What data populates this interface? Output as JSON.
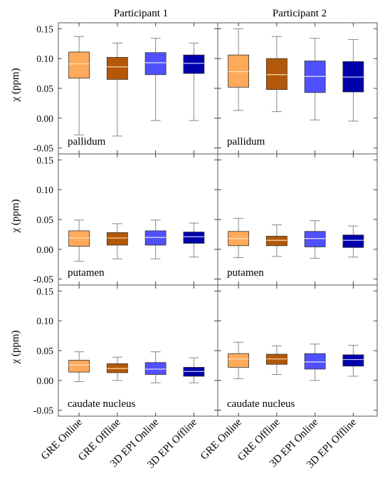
{
  "chart_data": {
    "type": "box",
    "categories": [
      "GRE Online",
      "GRE Offline",
      "3D EPI Online",
      "3D EPI Offline"
    ],
    "colors": [
      "#FFAA5A",
      "#B35808",
      "#5050FF",
      "#0000AA"
    ],
    "median_colors": [
      "#FFE4C4",
      "#FFD8A8",
      "#E6E6FF",
      "#C8C8FF"
    ],
    "ylabel": "χ (ppm)",
    "ylim": [
      -0.06,
      0.16
    ],
    "yticks": [
      -0.05,
      0.0,
      0.05,
      0.1,
      0.15
    ],
    "ytick_labels": [
      "-0.05",
      "0.00",
      "0.05",
      "0.10",
      "0.15"
    ],
    "columns": [
      "Participant 1",
      "Participant 2"
    ],
    "rows": [
      "pallidum",
      "putamen",
      "caudate nucleus"
    ],
    "panels": [
      {
        "column": "Participant 1",
        "region": "pallidum",
        "boxes": [
          {
            "whislo": -0.028,
            "q1": 0.067,
            "med": 0.091,
            "q3": 0.111,
            "whishi": 0.137
          },
          {
            "whislo": -0.03,
            "q1": 0.065,
            "med": 0.086,
            "q3": 0.102,
            "whishi": 0.126
          },
          {
            "whislo": -0.004,
            "q1": 0.073,
            "med": 0.093,
            "q3": 0.11,
            "whishi": 0.134
          },
          {
            "whislo": -0.004,
            "q1": 0.075,
            "med": 0.092,
            "q3": 0.106,
            "whishi": 0.126
          }
        ]
      },
      {
        "column": "Participant 2",
        "region": "pallidum",
        "boxes": [
          {
            "whislo": 0.013,
            "q1": 0.052,
            "med": 0.078,
            "q3": 0.106,
            "whishi": 0.15
          },
          {
            "whislo": 0.011,
            "q1": 0.048,
            "med": 0.073,
            "q3": 0.1,
            "whishi": 0.137
          },
          {
            "whislo": -0.003,
            "q1": 0.043,
            "med": 0.07,
            "q3": 0.096,
            "whishi": 0.134
          },
          {
            "whislo": -0.005,
            "q1": 0.044,
            "med": 0.069,
            "q3": 0.095,
            "whishi": 0.132
          }
        ]
      },
      {
        "column": "Participant 1",
        "region": "putamen",
        "boxes": [
          {
            "whislo": -0.02,
            "q1": 0.005,
            "med": 0.019,
            "q3": 0.031,
            "whishi": 0.049
          },
          {
            "whislo": -0.016,
            "q1": 0.007,
            "med": 0.019,
            "q3": 0.028,
            "whishi": 0.043
          },
          {
            "whislo": -0.016,
            "q1": 0.007,
            "med": 0.02,
            "q3": 0.031,
            "whishi": 0.049
          },
          {
            "whislo": -0.013,
            "q1": 0.01,
            "med": 0.021,
            "q3": 0.029,
            "whishi": 0.044
          }
        ]
      },
      {
        "column": "Participant 2",
        "region": "putamen",
        "boxes": [
          {
            "whislo": -0.014,
            "q1": 0.006,
            "med": 0.018,
            "q3": 0.03,
            "whishi": 0.052
          },
          {
            "whislo": -0.012,
            "q1": 0.006,
            "med": 0.015,
            "q3": 0.022,
            "whishi": 0.041
          },
          {
            "whislo": -0.015,
            "q1": 0.004,
            "med": 0.018,
            "q3": 0.03,
            "whishi": 0.048
          },
          {
            "whislo": -0.013,
            "q1": 0.003,
            "med": 0.015,
            "q3": 0.024,
            "whishi": 0.039
          }
        ]
      },
      {
        "column": "Participant 1",
        "region": "caudate nucleus",
        "boxes": [
          {
            "whislo": -0.002,
            "q1": 0.014,
            "med": 0.026,
            "q3": 0.034,
            "whishi": 0.048
          },
          {
            "whislo": 0.0,
            "q1": 0.013,
            "med": 0.02,
            "q3": 0.028,
            "whishi": 0.039
          },
          {
            "whislo": -0.004,
            "q1": 0.01,
            "med": 0.019,
            "q3": 0.03,
            "whishi": 0.048
          },
          {
            "whislo": -0.004,
            "q1": 0.007,
            "med": 0.015,
            "q3": 0.022,
            "whishi": 0.038
          }
        ]
      },
      {
        "column": "Participant 2",
        "region": "caudate nucleus",
        "boxes": [
          {
            "whislo": 0.003,
            "q1": 0.022,
            "med": 0.036,
            "q3": 0.045,
            "whishi": 0.064
          },
          {
            "whislo": 0.01,
            "q1": 0.027,
            "med": 0.036,
            "q3": 0.044,
            "whishi": 0.058
          },
          {
            "whislo": 0.0,
            "q1": 0.019,
            "med": 0.031,
            "q3": 0.045,
            "whishi": 0.061
          },
          {
            "whislo": 0.007,
            "q1": 0.024,
            "med": 0.035,
            "q3": 0.043,
            "whishi": 0.059
          }
        ]
      }
    ],
    "grid": false,
    "legend": "none"
  }
}
